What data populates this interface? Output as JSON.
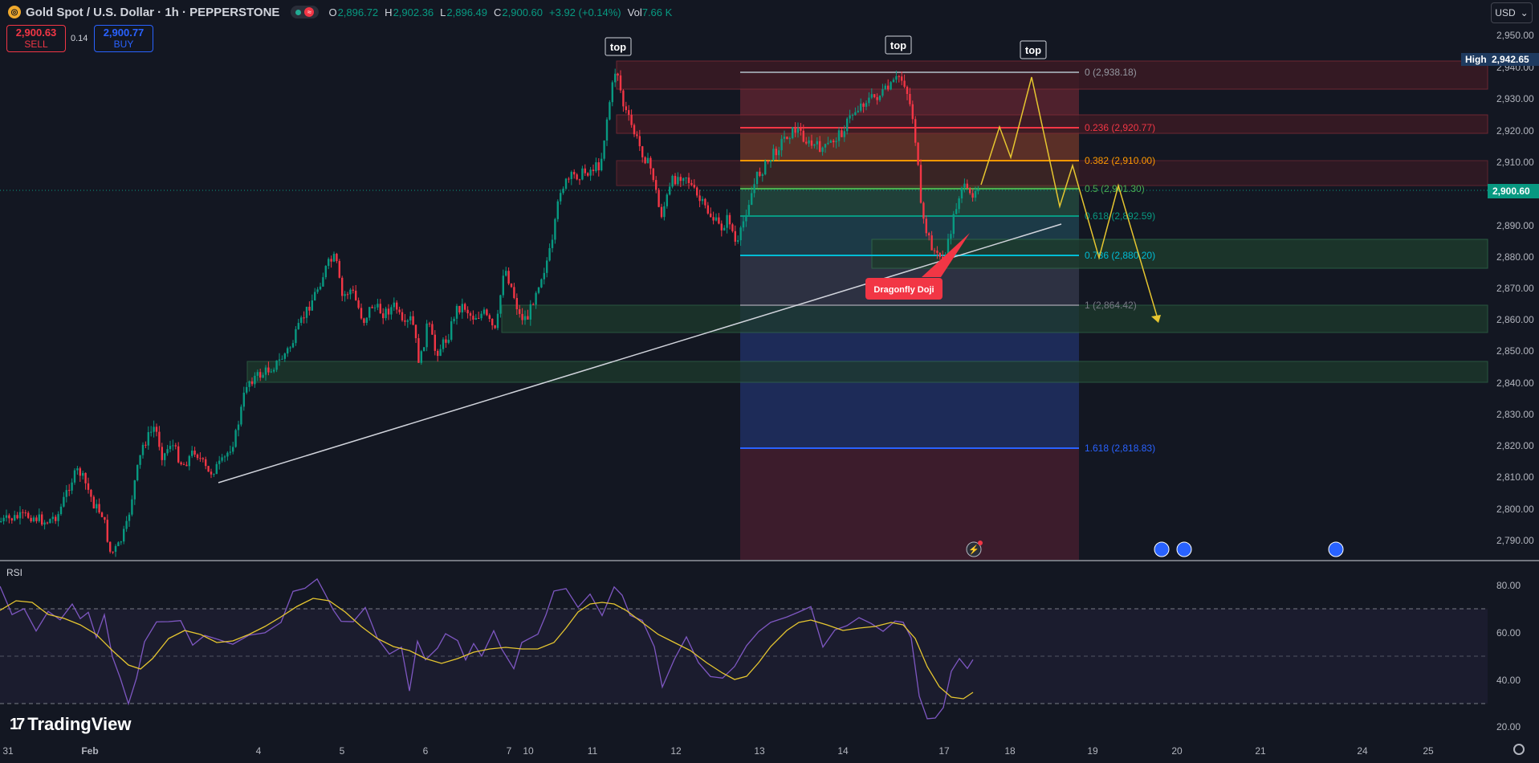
{
  "header": {
    "symbol_title": "Gold Spot / U.S. Dollar · 1h · PEPPERSTONE",
    "open_label": "O",
    "open": "2,896.72",
    "high_label": "H",
    "high": "2,902.36",
    "low_label": "L",
    "low": "2,896.49",
    "close_label": "C",
    "close": "2,900.60",
    "change": "+3.92 (+0.14%)",
    "vol_label": "Vol",
    "vol": "7.66 K",
    "currency": "USD",
    "exchange_pill": "≈"
  },
  "trade": {
    "sell_price": "2,900.63",
    "sell_label": "SELL",
    "spread": "0.14",
    "buy_price": "2,900.77",
    "buy_label": "BUY"
  },
  "annotations": {
    "top1": "top",
    "top2": "top",
    "top3": "top",
    "pattern": "Dragonfly Doji"
  },
  "price_axis": {
    "ticks": [
      "2,950.00",
      "2,940.00",
      "2,930.00",
      "2,920.00",
      "2,910.00",
      "2,900.00",
      "2,890.00",
      "2,880.00",
      "2,870.00",
      "2,860.00",
      "2,850.00",
      "2,840.00",
      "2,830.00",
      "2,820.00",
      "2,810.00",
      "2,800.00",
      "2,790.00"
    ],
    "high_label": "High",
    "high_value": "2,942.65",
    "current_price": "2,900.60"
  },
  "fib_levels": [
    {
      "label": "0 (2,938.18)",
      "color": "#9598a1"
    },
    {
      "label": "0.236 (2,920.77)",
      "color": "#f23645"
    },
    {
      "label": "0.382 (2,910.00)",
      "color": "#ff9800"
    },
    {
      "label": "0.5 (2,901.30)",
      "color": "#4caf50"
    },
    {
      "label": "0.618 (2,892.59)",
      "color": "#089981"
    },
    {
      "label": "0.786 (2,880.20)",
      "color": "#00bcd4"
    },
    {
      "label": "1 (2,864.42)",
      "color": "#787b86"
    },
    {
      "label": "1.618 (2,818.83)",
      "color": "#2962ff"
    }
  ],
  "rsi": {
    "label": "RSI",
    "ticks": [
      "80.00",
      "60.00",
      "40.00",
      "20.00"
    ]
  },
  "time_axis": [
    "31",
    "Feb",
    "4",
    "5",
    "6",
    "7",
    "10",
    "11",
    "12",
    "13",
    "14",
    "17",
    "18",
    "19",
    "20",
    "21",
    "24",
    "25"
  ],
  "branding": "TradingView",
  "colors": {
    "up": "#089981",
    "down": "#f23645",
    "projection": "#e6c630",
    "rsi_line": "#7e57c2",
    "rsi_ma": "#e6c630"
  }
}
